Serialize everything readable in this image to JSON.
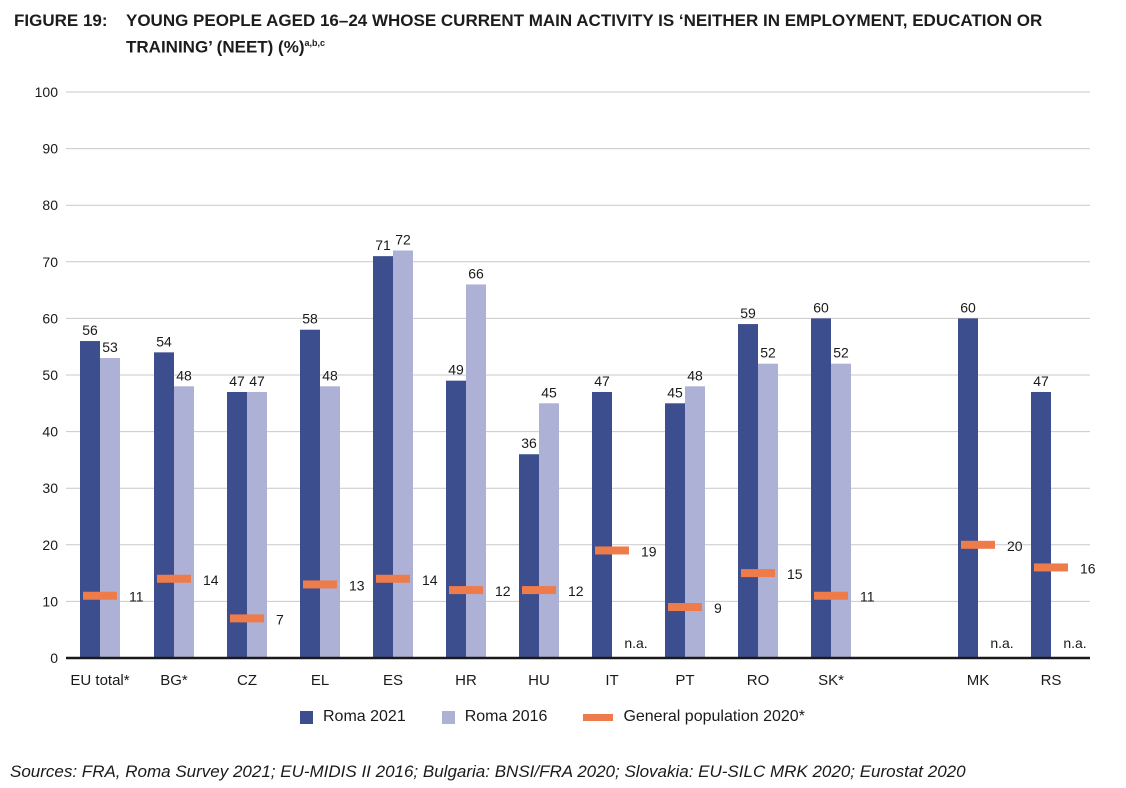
{
  "figure": {
    "label": "FIGURE 19:",
    "title_line1": "YOUNG PEOPLE AGED 16–24 WHOSE CURRENT MAIN ACTIVITY IS ‘NEITHER IN EMPLOYMENT, EDUCATION OR",
    "title_line2": "TRAINING’ (NEET) (%)",
    "title_superscript": "a,b,c",
    "source": "Sources: FRA, Roma Survey 2021; EU-MIDIS II 2016; Bulgaria: BNSI/FRA 2020; Slovakia: EU-SILC MRK 2020; Eurostat 2020"
  },
  "chart_data": {
    "type": "bar",
    "ylim": [
      0,
      100
    ],
    "yticks": [
      0,
      10,
      20,
      30,
      40,
      50,
      60,
      70,
      80,
      90,
      100
    ],
    "grid": true,
    "categories": [
      "EU total*",
      "BG*",
      "CZ",
      "EL",
      "ES",
      "HR",
      "HU",
      "IT",
      "PT",
      "RO",
      "SK*",
      "MK",
      "RS"
    ],
    "series": [
      {
        "name": "Roma 2021",
        "color": "#3d4e8f",
        "values": [
          56,
          54,
          47,
          58,
          71,
          49,
          36,
          47,
          45,
          59,
          60,
          60,
          47
        ]
      },
      {
        "name": "Roma 2016",
        "color": "#aeb1d6",
        "values": [
          53,
          48,
          47,
          48,
          72,
          66,
          45,
          null,
          48,
          52,
          52,
          null,
          null
        ]
      },
      {
        "name": "General population 2020*",
        "color": "#ee7b4a",
        "marker": "line",
        "values": [
          11,
          14,
          7,
          13,
          14,
          12,
          12,
          19,
          9,
          15,
          11,
          20,
          16
        ]
      }
    ],
    "na_label": "n.a.",
    "legend_position": "bottom"
  }
}
